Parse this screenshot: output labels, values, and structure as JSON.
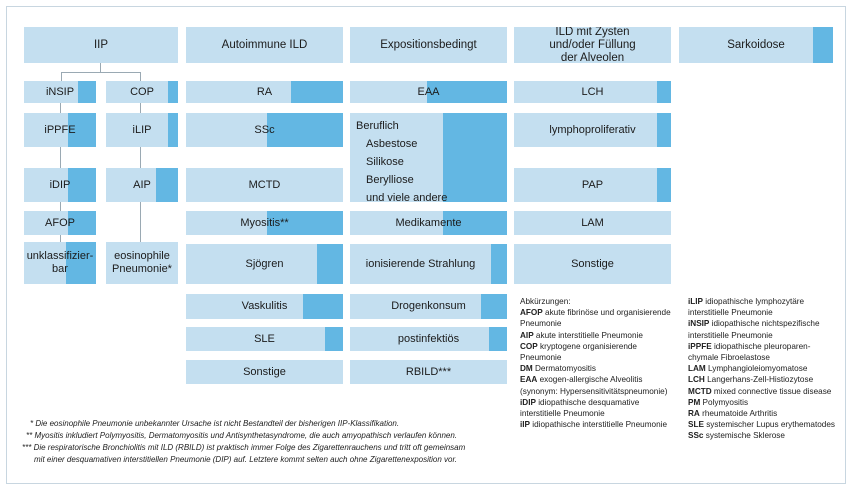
{
  "colors": {
    "light": "#c4dff0",
    "dark": "#63b7e3"
  },
  "headers": {
    "iip": "IIP",
    "autoimmune": "Autoimmune ILD",
    "exposition": "Expositionsbedingt",
    "zysten": "ILD mit Zysten und/oder Füllung der Alveolen",
    "sarkoidose": "Sarkoidose"
  },
  "iip": {
    "insip": "iNSIP",
    "cop": "COP",
    "ippfe": "iPPFE",
    "ilip": "iLIP",
    "idip": "iDIP",
    "aip": "AIP",
    "afop": "AFOP",
    "unklass": "unklassifizier-bar",
    "eosino": "eosinophile Pneumonie*"
  },
  "autoimmune": {
    "ra": "RA",
    "ssc": "SSc",
    "mctd": "MCTD",
    "myositis": "Myositis**",
    "sjogren": "Sjögren",
    "vaskulitis": "Vaskulitis",
    "sle": "SLE",
    "sonstige": "Sonstige"
  },
  "exposition": {
    "eaa": "EAA",
    "beruflich": [
      "Beruflich",
      "Asbestose",
      "Silikose",
      "Berylliose",
      "und viele andere"
    ],
    "medikamente": "Medikamente",
    "strahlung": "ionisierende Strahlung",
    "drogen": "Drogenkonsum",
    "postinfekt": "postinfektiös",
    "rbild": "RBILD***"
  },
  "zysten": {
    "lch": "LCH",
    "lympho": "lymphoproliferativ",
    "pap": "PAP",
    "lam": "LAM",
    "sonstige": "Sonstige"
  },
  "abbr_title": "Abkürzungen:",
  "abbr_left": [
    {
      "k": "AFOP",
      "v": " akute fibrinöse und organisierende Pneumonie"
    },
    {
      "k": "AIP",
      "v": " akute interstitielle Pneumonie"
    },
    {
      "k": "COP",
      "v": " kryptogene organisierende Pneumonie"
    },
    {
      "k": "DM",
      "v": " Dermatomyositis"
    },
    {
      "k": "EAA",
      "v": " exogen-allergische Alveolitis (synonym: Hypersensitivitätspneumonie)"
    },
    {
      "k": "iDIP",
      "v": " idiopathische desquamative interstitielle Pneumonie"
    },
    {
      "k": "iIP",
      "v": " idiopathische interstitielle Pneumonie"
    }
  ],
  "abbr_right": [
    {
      "k": "iLIP",
      "v": " idiopathische lymphozytäre interstitielle Pneumonie"
    },
    {
      "k": "iNSIP",
      "v": " idiopathische nichtspezifische interstitielle Pneumonie"
    },
    {
      "k": "iPPFE",
      "v": " idiopathische pleuroparen-chymale Fibroelastose"
    },
    {
      "k": "LAM",
      "v": " Lymphangioleiomyomatose"
    },
    {
      "k": "LCH",
      "v": " Langerhans-Zell-Histiozytose"
    },
    {
      "k": "MCTD",
      "v": " mixed connective tissue disease"
    },
    {
      "k": "PM",
      "v": " Polymyositis"
    },
    {
      "k": "RA",
      "v": " rheumatoide Arthritis"
    },
    {
      "k": "SLE",
      "v": " systemischer Lupus erythematodes"
    },
    {
      "k": "SSc",
      "v": " systemische Sklerose"
    }
  ],
  "notes": {
    "n1": "* Die eosinophile Pneumonie unbekannter Ursache ist nicht Bestandteil der bisherigen IIP-Klassifikation.",
    "n2": "** Myositis inkludiert Polymyositis, Dermatomyositis und Antisynthetasyndrome, die auch amyopathisch verlaufen können.",
    "n3": "*** Die respiratorische Bronchiolitis mit ILD (RBILD) ist praktisch immer Folge des Zigarettenrauchens und tritt oft gemeinsam",
    "n4": "mit einer desquamativen interstitiellen Pneumonie (DIP) auf. Letztere kommt selten auch ohne Zigarettenexposition vor."
  }
}
